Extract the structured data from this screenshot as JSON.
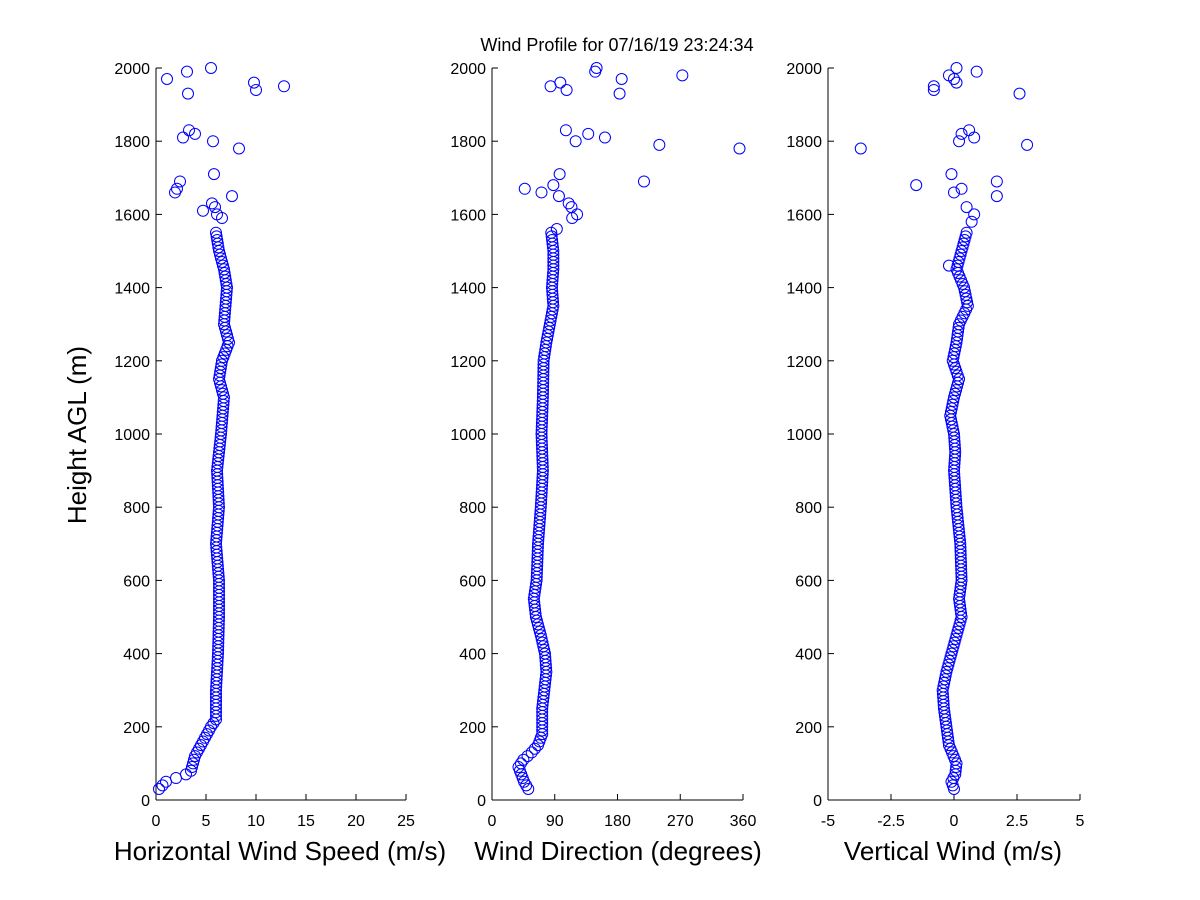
{
  "chart_data": {
    "type": "scatter",
    "title": "Wind Profile for  07/16/19 23:24:34",
    "ylabel": "Height AGL (m)",
    "ylim": [
      0,
      2000
    ],
    "yticks": [
      "0",
      "200",
      "400",
      "600",
      "800",
      "1000",
      "1200",
      "1400",
      "1600",
      "1800",
      "2000"
    ],
    "marker_color": "#0000ff",
    "panels": [
      {
        "xlabel": "Horizontal Wind Speed (m/s)",
        "xlim": [
          0,
          25
        ],
        "xticks": [
          {
            "v": 0,
            "t": "0"
          },
          {
            "v": 5,
            "t": "5"
          },
          {
            "v": 10,
            "t": "10"
          },
          {
            "v": 15,
            "t": "15"
          },
          {
            "v": 20,
            "t": "20"
          },
          {
            "v": 25,
            "t": "25"
          }
        ],
        "profile": [
          [
            30,
            0.3
          ],
          [
            50,
            1.0
          ],
          [
            60,
            2.0
          ],
          [
            70,
            3.0
          ],
          [
            80,
            3.5
          ],
          [
            100,
            3.7
          ],
          [
            120,
            3.9
          ],
          [
            140,
            4.3
          ],
          [
            160,
            4.7
          ],
          [
            180,
            5.1
          ],
          [
            200,
            5.5
          ],
          [
            220,
            6.0
          ],
          [
            300,
            6.0
          ],
          [
            400,
            6.2
          ],
          [
            500,
            6.3
          ],
          [
            600,
            6.3
          ],
          [
            700,
            6.0
          ],
          [
            800,
            6.3
          ],
          [
            900,
            6.1
          ],
          [
            1000,
            6.5
          ],
          [
            1100,
            6.8
          ],
          [
            1150,
            6.3
          ],
          [
            1200,
            6.6
          ],
          [
            1250,
            7.3
          ],
          [
            1300,
            6.8
          ],
          [
            1400,
            7.1
          ],
          [
            1450,
            6.8
          ],
          [
            1500,
            6.3
          ],
          [
            1550,
            6.0
          ]
        ],
        "scatter": [
          [
            1610,
            4.7
          ],
          [
            1630,
            5.6
          ],
          [
            1620,
            5.9
          ],
          [
            1600,
            6.1
          ],
          [
            1590,
            6.6
          ],
          [
            1650,
            7.6
          ],
          [
            1660,
            1.9
          ],
          [
            1670,
            2.1
          ],
          [
            1690,
            2.4
          ],
          [
            1710,
            5.8
          ],
          [
            1780,
            8.3
          ],
          [
            1800,
            5.7
          ],
          [
            1810,
            2.7
          ],
          [
            1820,
            3.9
          ],
          [
            1830,
            3.3
          ],
          [
            1930,
            3.2
          ],
          [
            1950,
            12.8
          ],
          [
            1940,
            10.0
          ],
          [
            1960,
            9.8
          ],
          [
            1970,
            1.1
          ],
          [
            1990,
            3.1
          ],
          [
            2000,
            5.5
          ]
        ]
      },
      {
        "xlabel": "Wind Direction (degrees)",
        "xlim": [
          0,
          360
        ],
        "xticks": [
          {
            "v": 0,
            "t": "0"
          },
          {
            "v": 90,
            "t": "90"
          },
          {
            "v": 180,
            "t": "180"
          },
          {
            "v": 270,
            "t": "270"
          },
          {
            "v": 360,
            "t": "360"
          }
        ],
        "profile": [
          [
            30,
            52
          ],
          [
            50,
            46
          ],
          [
            70,
            42
          ],
          [
            90,
            38
          ],
          [
            110,
            45
          ],
          [
            130,
            57
          ],
          [
            150,
            66
          ],
          [
            180,
            72
          ],
          [
            250,
            72
          ],
          [
            300,
            75
          ],
          [
            350,
            78
          ],
          [
            400,
            76
          ],
          [
            450,
            70
          ],
          [
            500,
            63
          ],
          [
            550,
            60
          ],
          [
            600,
            64
          ],
          [
            700,
            66
          ],
          [
            800,
            70
          ],
          [
            900,
            73
          ],
          [
            1000,
            71
          ],
          [
            1100,
            73
          ],
          [
            1200,
            74
          ],
          [
            1250,
            78
          ],
          [
            1300,
            83
          ],
          [
            1350,
            88
          ],
          [
            1400,
            86
          ],
          [
            1450,
            88
          ],
          [
            1500,
            88
          ],
          [
            1550,
            85
          ]
        ],
        "scatter": [
          [
            1560,
            93
          ],
          [
            1590,
            115
          ],
          [
            1600,
            122
          ],
          [
            1620,
            114
          ],
          [
            1630,
            110
          ],
          [
            1650,
            96
          ],
          [
            1660,
            71
          ],
          [
            1670,
            47
          ],
          [
            1680,
            88
          ],
          [
            1690,
            218
          ],
          [
            1710,
            97
          ],
          [
            1780,
            355
          ],
          [
            1790,
            240
          ],
          [
            1800,
            120
          ],
          [
            1810,
            162
          ],
          [
            1820,
            138
          ],
          [
            1830,
            106
          ],
          [
            1930,
            183
          ],
          [
            1940,
            107
          ],
          [
            1950,
            84
          ],
          [
            1960,
            98
          ],
          [
            1970,
            186
          ],
          [
            1980,
            273
          ],
          [
            1990,
            148
          ],
          [
            2000,
            150
          ]
        ]
      },
      {
        "xlabel": "Vertical Wind (m/s)",
        "xlim": [
          -5,
          5
        ],
        "xticks": [
          {
            "v": -5,
            "t": "-5"
          },
          {
            "v": -2.5,
            "t": "-2.5"
          },
          {
            "v": 0,
            "t": "0"
          },
          {
            "v": 2.5,
            "t": "2.5"
          },
          {
            "v": 5,
            "t": "5"
          }
        ],
        "profile": [
          [
            30,
            0.0
          ],
          [
            50,
            -0.1
          ],
          [
            70,
            0.05
          ],
          [
            100,
            0.1
          ],
          [
            150,
            -0.2
          ],
          [
            200,
            -0.3
          ],
          [
            250,
            -0.4
          ],
          [
            300,
            -0.45
          ],
          [
            350,
            -0.3
          ],
          [
            400,
            -0.1
          ],
          [
            450,
            0.1
          ],
          [
            500,
            0.3
          ],
          [
            550,
            0.2
          ],
          [
            600,
            0.3
          ],
          [
            700,
            0.25
          ],
          [
            800,
            0.1
          ],
          [
            900,
            0.0
          ],
          [
            950,
            0.05
          ],
          [
            1000,
            0.0
          ],
          [
            1050,
            -0.15
          ],
          [
            1100,
            0.0
          ],
          [
            1150,
            0.2
          ],
          [
            1200,
            -0.05
          ],
          [
            1250,
            0.1
          ],
          [
            1300,
            0.2
          ],
          [
            1350,
            0.55
          ],
          [
            1400,
            0.4
          ],
          [
            1450,
            0.1
          ],
          [
            1500,
            0.3
          ],
          [
            1550,
            0.5
          ]
        ],
        "scatter": [
          [
            1460,
            -0.2
          ],
          [
            1580,
            0.7
          ],
          [
            1600,
            0.8
          ],
          [
            1620,
            0.5
          ],
          [
            1650,
            1.7
          ],
          [
            1660,
            0.0
          ],
          [
            1670,
            0.3
          ],
          [
            1680,
            -1.5
          ],
          [
            1690,
            1.7
          ],
          [
            1710,
            -0.1
          ],
          [
            1780,
            -3.7
          ],
          [
            1790,
            2.9
          ],
          [
            1800,
            0.2
          ],
          [
            1810,
            0.8
          ],
          [
            1820,
            0.3
          ],
          [
            1830,
            0.6
          ],
          [
            1930,
            2.6
          ],
          [
            1940,
            -0.8
          ],
          [
            1950,
            -0.8
          ],
          [
            1960,
            0.1
          ],
          [
            1970,
            0.0
          ],
          [
            1980,
            -0.2
          ],
          [
            1990,
            0.9
          ],
          [
            2000,
            0.1
          ]
        ]
      }
    ]
  }
}
